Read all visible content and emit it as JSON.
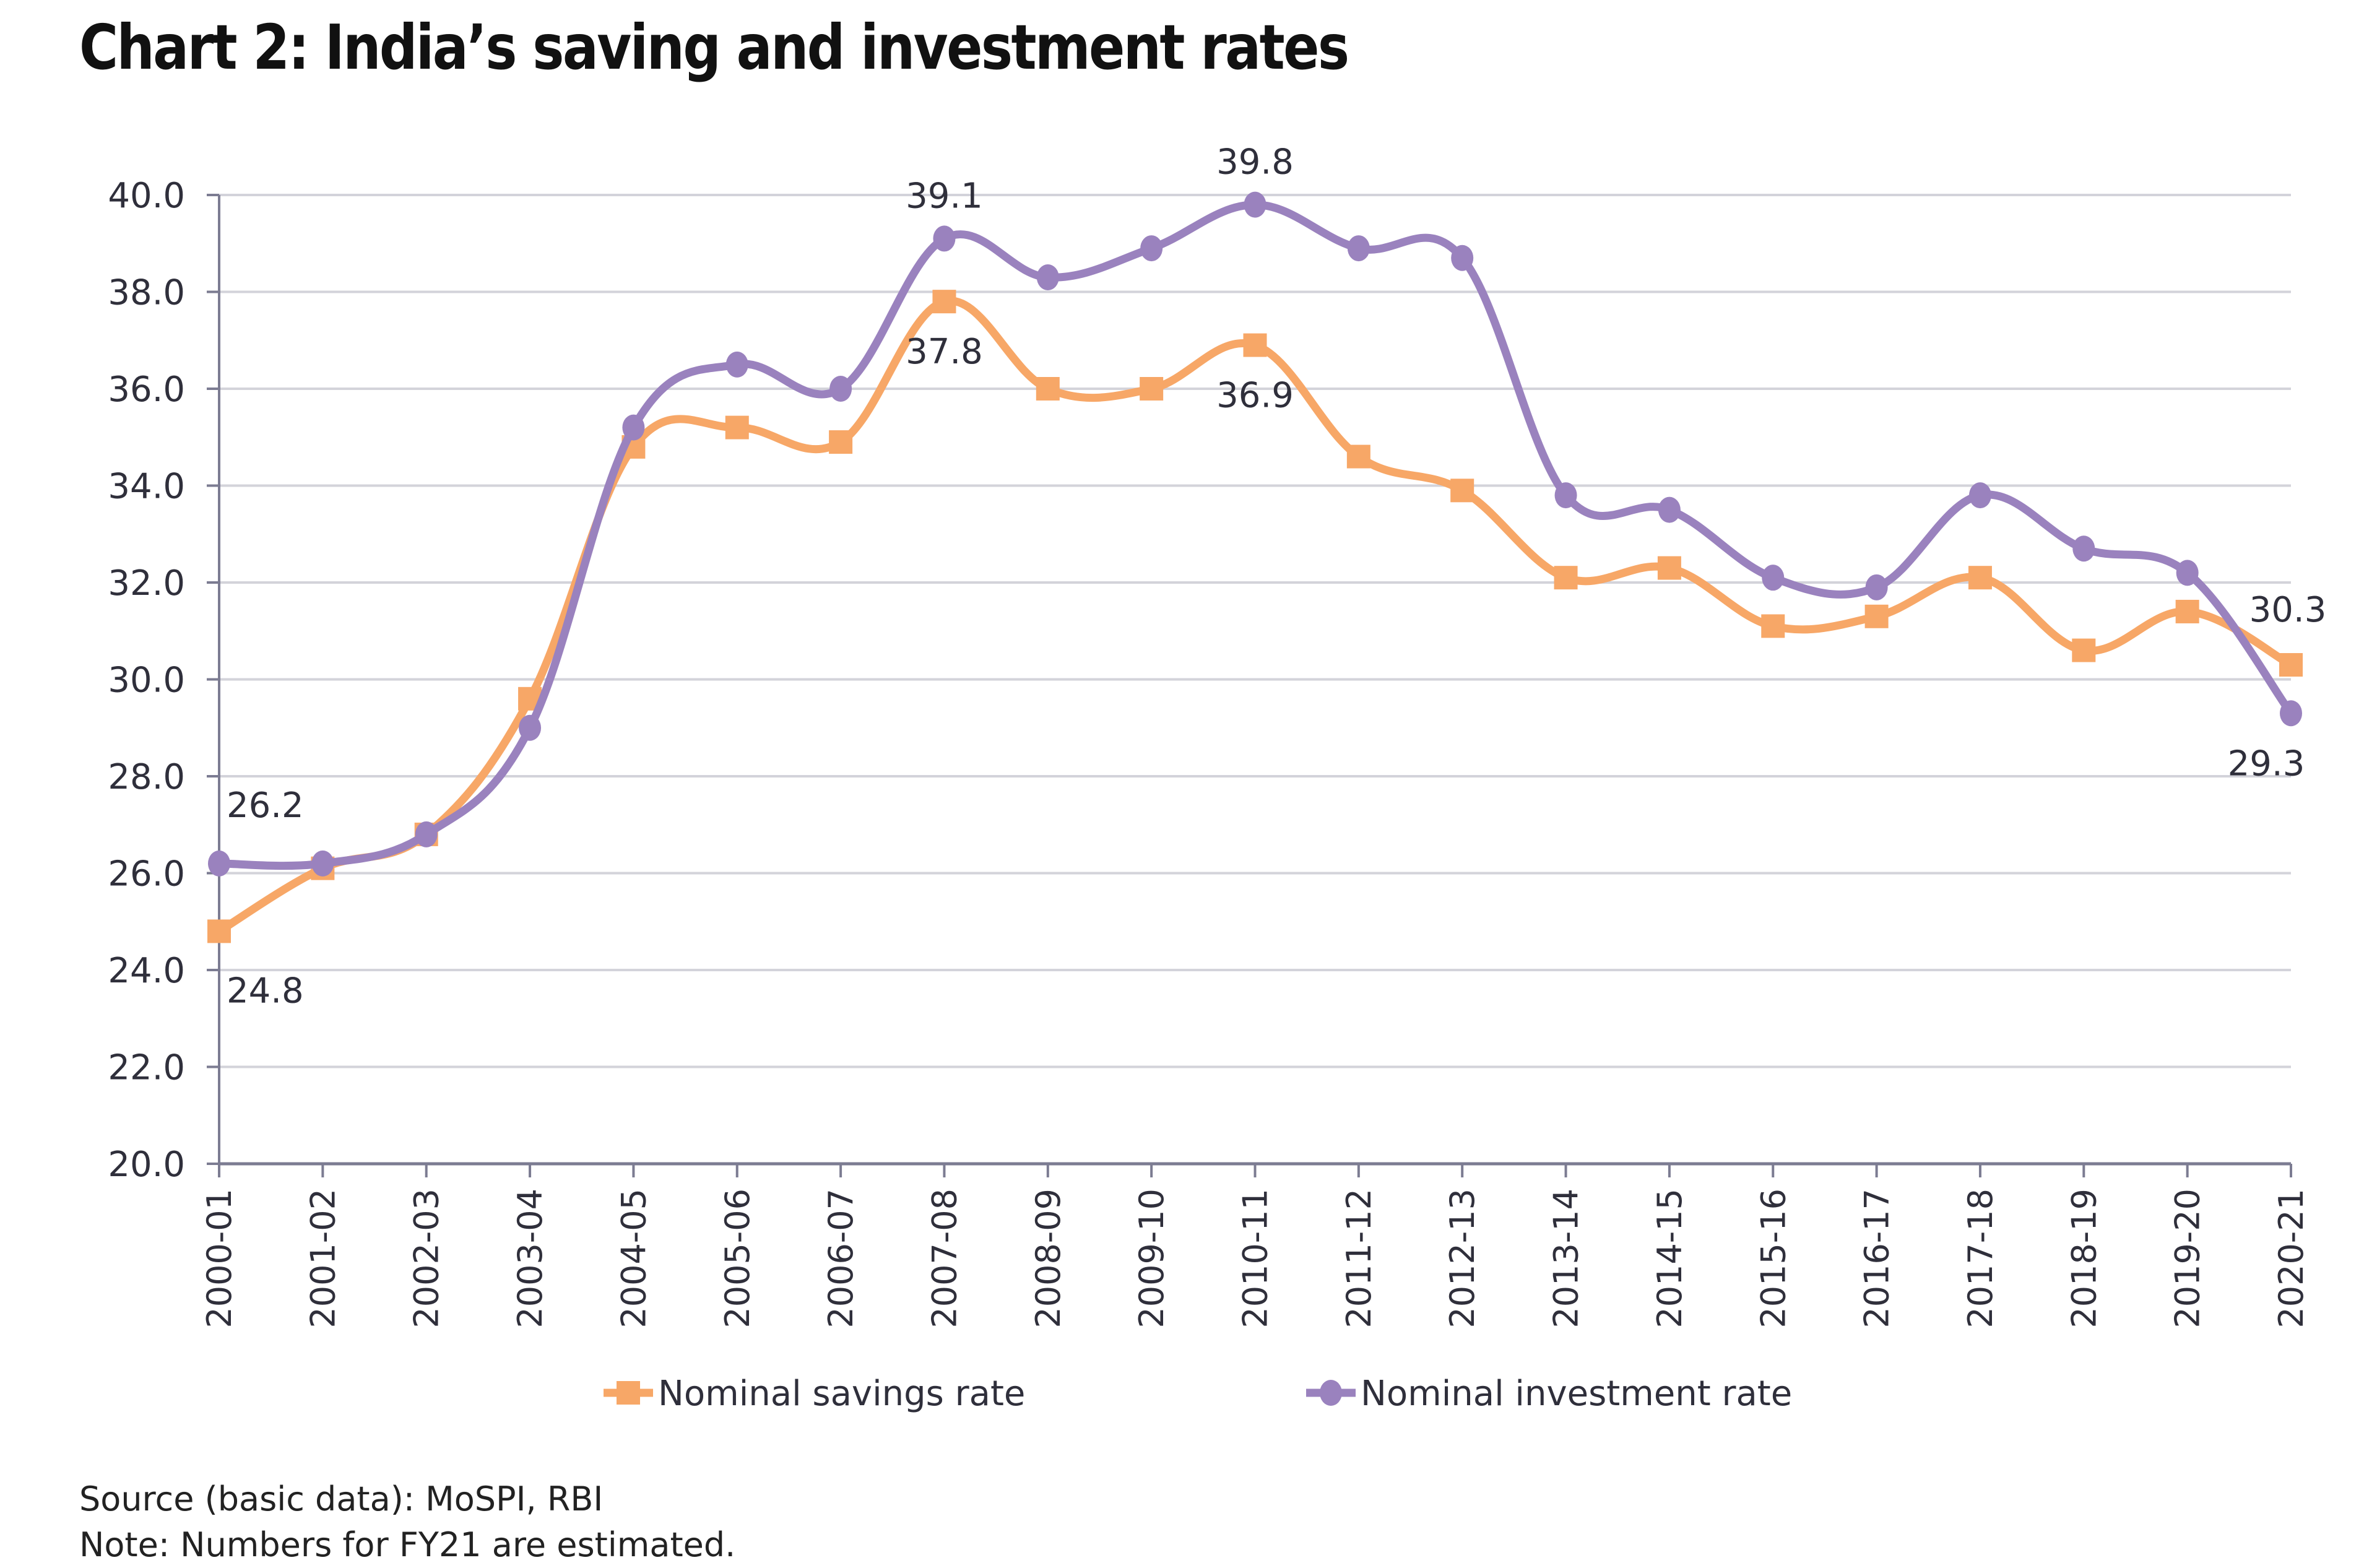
{
  "title": "Chart 2: India’s saving and investment rates",
  "source": "Source (basic data): MoSPI, RBI",
  "note": "Note: Numbers for FY21 are estimated.",
  "colors": {
    "savings": "#F7A767",
    "investment": "#9A82BE",
    "grid": "#D3D3DA",
    "axis": "#7C7C92"
  },
  "chart_data": {
    "type": "line",
    "title": "Chart 2: India’s saving and investment rates",
    "xlabel": "",
    "ylabel": "",
    "ylim": [
      20,
      40
    ],
    "yticks": [
      "20.0",
      "22.0",
      "24.0",
      "26.0",
      "28.0",
      "30.0",
      "32.0",
      "34.0",
      "36.0",
      "38.0",
      "40.0"
    ],
    "grid": true,
    "smooth": true,
    "legend_position": "bottom",
    "categories": [
      "2000-01",
      "2001-02",
      "2002-03",
      "2003-04",
      "2004-05",
      "2005-06",
      "2006-07",
      "2007-08",
      "2008-09",
      "2009-10",
      "2010-11",
      "2011-12",
      "2012-13",
      "2013-14",
      "2014-15",
      "2015-16",
      "2016-17",
      "2017-18",
      "2018-19",
      "2019-20",
      "2020-21"
    ],
    "series": [
      {
        "name": "Nominal savings rate",
        "marker": "square",
        "values": [
          24.8,
          26.1,
          26.8,
          29.6,
          34.8,
          35.2,
          34.9,
          37.8,
          36.0,
          36.0,
          36.9,
          34.6,
          33.9,
          32.1,
          32.3,
          31.1,
          31.3,
          32.1,
          30.6,
          31.4,
          30.3
        ],
        "labels": [
          {
            "index": 0,
            "text": "24.8",
            "position": "below"
          },
          {
            "index": 7,
            "text": "37.8",
            "position": "below"
          },
          {
            "index": 10,
            "text": "36.9",
            "position": "below"
          },
          {
            "index": 20,
            "text": "30.3",
            "position": "above"
          }
        ]
      },
      {
        "name": "Nominal investment rate",
        "marker": "circle",
        "values": [
          26.2,
          26.2,
          26.8,
          29.0,
          35.2,
          36.5,
          36.0,
          39.1,
          38.3,
          38.9,
          39.8,
          38.9,
          38.7,
          33.8,
          33.5,
          32.1,
          31.9,
          33.8,
          32.7,
          32.2,
          29.3
        ],
        "labels": [
          {
            "index": 0,
            "text": "26.2",
            "position": "above"
          },
          {
            "index": 7,
            "text": "39.1",
            "position": "above"
          },
          {
            "index": 10,
            "text": "39.8",
            "position": "above"
          },
          {
            "index": 20,
            "text": "29.3",
            "position": "below"
          }
        ]
      }
    ]
  }
}
